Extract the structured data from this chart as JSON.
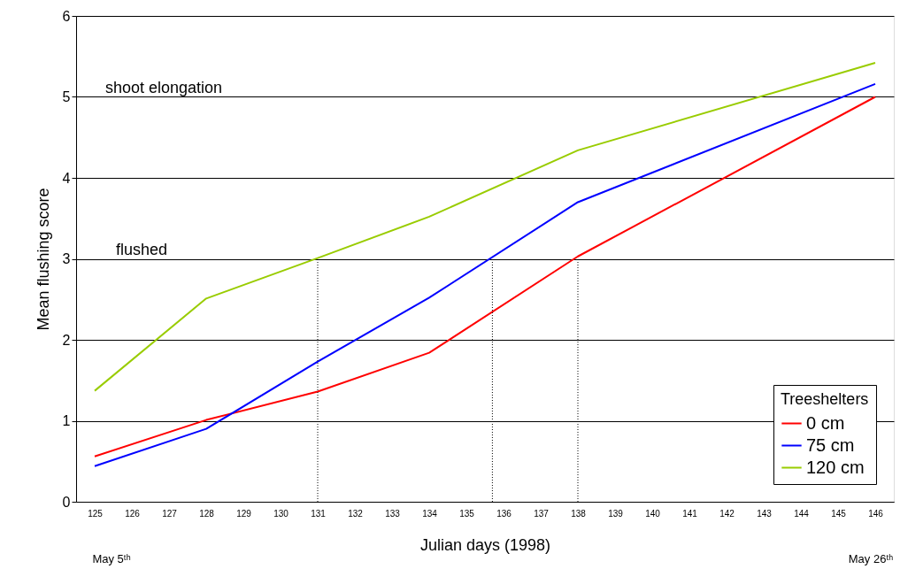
{
  "chart_data": {
    "type": "line",
    "xlabel": "Julian days (1998)",
    "ylabel": "Mean flushing score",
    "legend_title": "Treeshelters",
    "xlim": [
      124.5,
      146.5
    ],
    "xticks": [
      125,
      126,
      127,
      128,
      129,
      130,
      131,
      132,
      133,
      134,
      135,
      136,
      137,
      138,
      139,
      140,
      141,
      142,
      143,
      144,
      145,
      146
    ],
    "ylim": [
      0,
      6
    ],
    "yticks": [
      0,
      1,
      2,
      3,
      4,
      5,
      6
    ],
    "grid": "y",
    "legend": "bottom right",
    "marker": "none",
    "line_style": "solid",
    "series": [
      {
        "name": "0 cm",
        "color": "#ff0000",
        "x": [
          125,
          128,
          131,
          134,
          138,
          146
        ],
        "values": [
          0.56,
          1.01,
          1.36,
          1.84,
          3.03,
          5.0
        ]
      },
      {
        "name": "75 cm",
        "color": "#0000ff",
        "x": [
          125,
          128,
          131,
          134,
          138,
          146
        ],
        "values": [
          0.44,
          0.9,
          1.73,
          2.52,
          3.7,
          5.16
        ]
      },
      {
        "name": "120 cm",
        "color": "#99cc00",
        "x": [
          125,
          128,
          131,
          134,
          138,
          146
        ],
        "values": [
          1.37,
          2.51,
          3.01,
          3.52,
          4.34,
          5.42
        ]
      },
      {
        "color": "#000000",
        "line_style": "dotted",
        "x": [
          131,
          131
        ],
        "values": [
          0,
          3
        ]
      },
      {
        "color": "#000000",
        "line_style": "dotted",
        "x": [
          135.7,
          135.7
        ],
        "values": [
          0,
          3
        ]
      },
      {
        "color": "#000000",
        "line_style": "dotted",
        "x": [
          138,
          138
        ],
        "values": [
          0,
          3
        ]
      }
    ],
    "annotations": [
      "shoot elongation",
      "flushed",
      "May 5ᵗʰ",
      "May 26ᵗʰ"
    ]
  }
}
